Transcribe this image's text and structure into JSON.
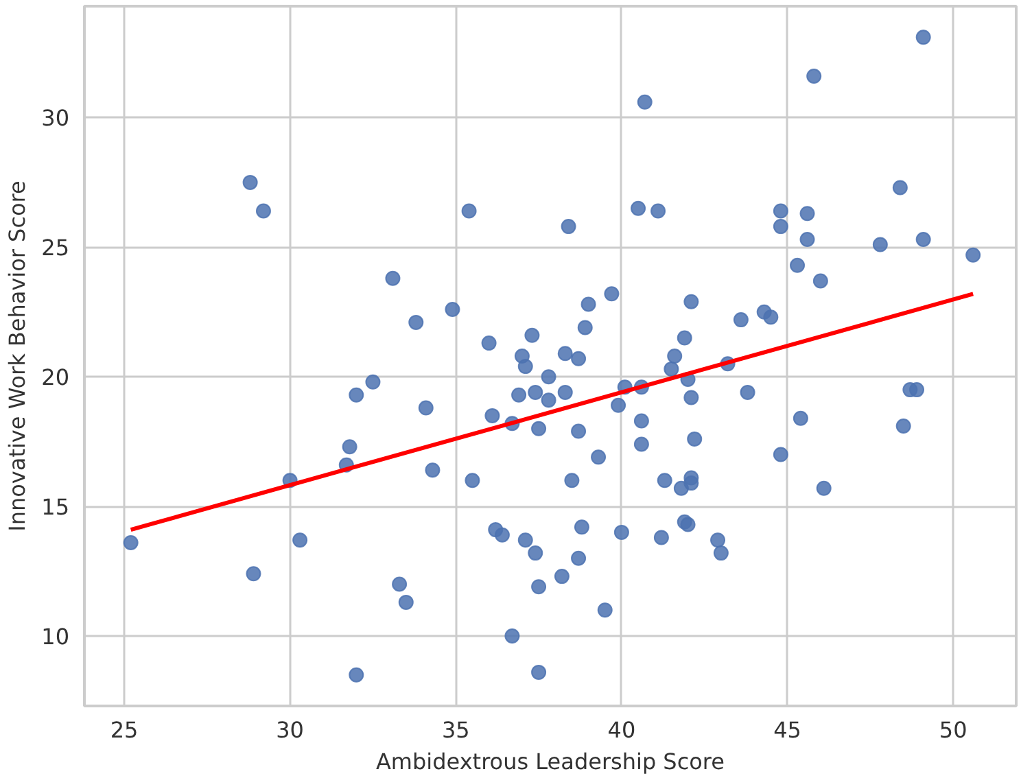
{
  "chart_data": {
    "type": "scatter",
    "xlabel": "Ambidextrous Leadership Score",
    "ylabel": "Innovative Work Behavior Score",
    "xlim": [
      23.8,
      51.9
    ],
    "ylim": [
      7.3,
      34.3
    ],
    "xticks": [
      25,
      30,
      35,
      40,
      45,
      50
    ],
    "yticks": [
      10,
      15,
      20,
      25,
      30
    ],
    "grid": true,
    "series": [
      {
        "marker": "circle",
        "color": "#4c72b0",
        "x": [
          25.2,
          28.8,
          29.2,
          28.9,
          30.0,
          30.3,
          31.7,
          31.8,
          32.0,
          32.5,
          32.0,
          33.1,
          33.3,
          33.5,
          33.8,
          34.1,
          34.3,
          34.9,
          35.4,
          35.5,
          36.0,
          36.1,
          36.2,
          36.4,
          36.7,
          36.7,
          36.9,
          37.0,
          37.1,
          37.1,
          37.3,
          37.4,
          37.4,
          37.5,
          37.5,
          37.5,
          37.8,
          37.8,
          38.2,
          38.3,
          38.3,
          38.4,
          38.5,
          38.7,
          38.7,
          38.7,
          38.8,
          38.9,
          39.0,
          39.3,
          39.5,
          39.7,
          39.9,
          40.0,
          40.1,
          40.5,
          40.6,
          40.6,
          40.6,
          40.7,
          41.1,
          41.2,
          41.3,
          41.5,
          41.6,
          41.8,
          41.9,
          41.9,
          42.0,
          42.0,
          42.1,
          42.1,
          42.1,
          42.1,
          42.2,
          42.9,
          43.0,
          43.2,
          43.6,
          43.8,
          44.3,
          44.5,
          44.8,
          44.8,
          44.8,
          45.3,
          45.4,
          45.6,
          45.6,
          45.8,
          46.0,
          46.1,
          47.8,
          48.4,
          48.5,
          48.7,
          48.9,
          49.1,
          49.1,
          50.6
        ],
        "values": [
          13.6,
          27.5,
          26.4,
          12.4,
          16.0,
          13.7,
          16.6,
          17.3,
          19.3,
          19.8,
          8.5,
          23.8,
          12.0,
          11.3,
          22.1,
          18.8,
          16.4,
          22.6,
          26.4,
          16.0,
          21.3,
          18.5,
          14.1,
          13.9,
          18.2,
          10.0,
          19.3,
          20.8,
          20.4,
          13.7,
          21.6,
          19.4,
          13.2,
          18.0,
          11.9,
          8.6,
          20.0,
          19.1,
          12.3,
          19.4,
          20.9,
          25.8,
          16.0,
          20.7,
          17.9,
          13.0,
          14.2,
          21.9,
          22.8,
          16.9,
          11.0,
          23.2,
          18.9,
          14.0,
          19.6,
          26.5,
          19.6,
          18.3,
          17.4,
          30.6,
          26.4,
          13.8,
          16.0,
          20.3,
          20.8,
          15.7,
          21.5,
          14.4,
          14.3,
          19.9,
          22.9,
          19.2,
          16.1,
          15.9,
          17.6,
          13.7,
          13.2,
          20.5,
          22.2,
          19.4,
          22.5,
          22.3,
          26.4,
          25.8,
          17.0,
          24.3,
          18.4,
          26.3,
          25.3,
          31.6,
          23.7,
          15.7,
          25.1,
          27.3,
          18.1,
          19.5,
          19.5,
          33.1,
          25.3,
          24.7
        ]
      },
      {
        "type": "line",
        "marker": "none",
        "color": "#ff0000",
        "x": [
          25.2,
          50.6
        ],
        "values": [
          14.1,
          23.2
        ]
      }
    ]
  }
}
